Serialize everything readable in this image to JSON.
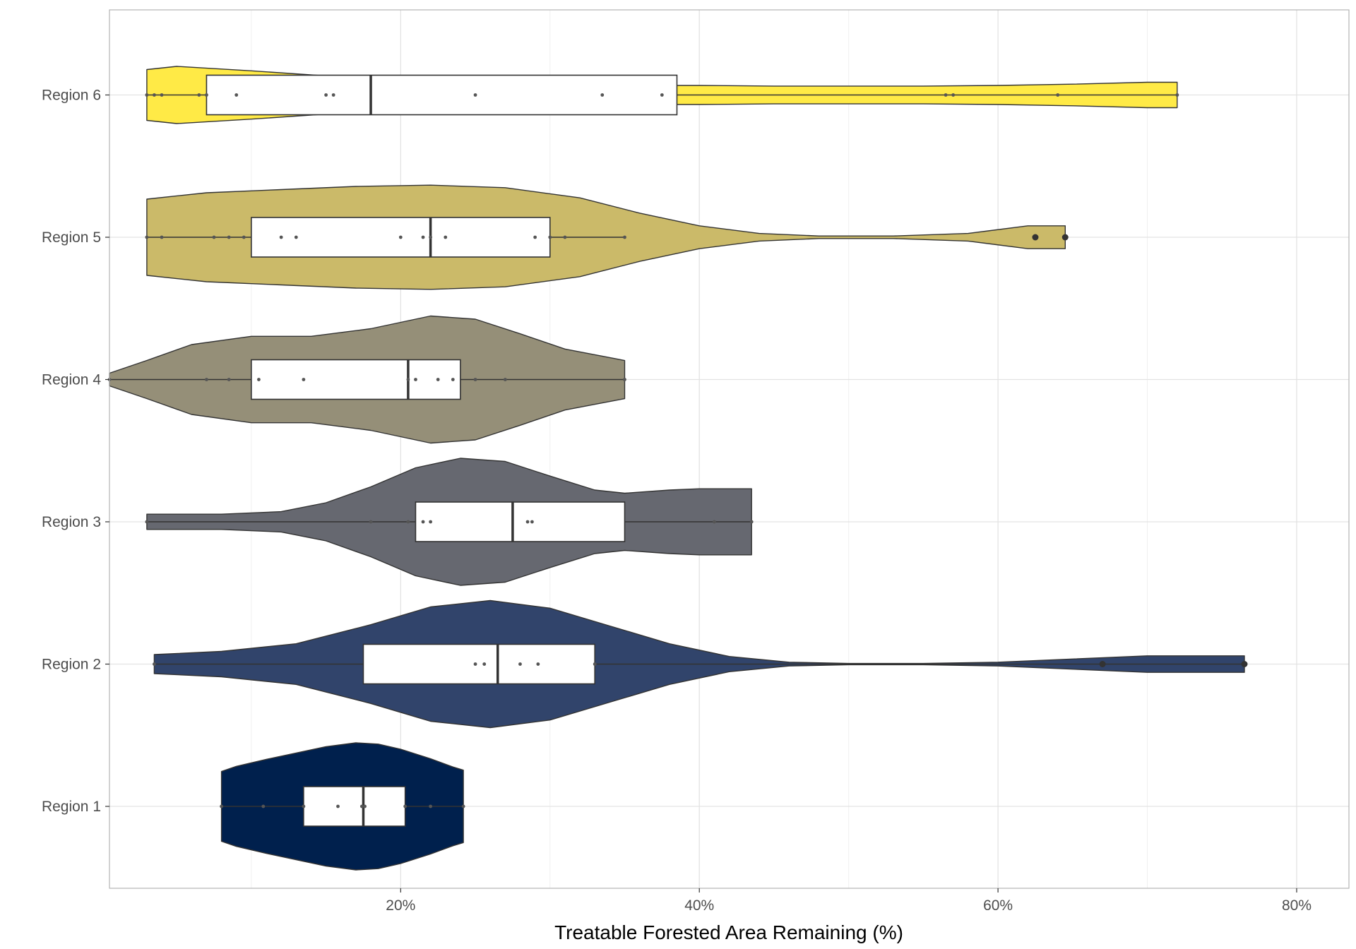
{
  "chart_data": {
    "type": "violin",
    "orientation": "horizontal",
    "title": "",
    "xlabel": "Treatable Forested Area Remaining (%)",
    "ylabel": "",
    "xlim": [
      0.5,
      83.5
    ],
    "x_ticks": [
      20,
      40,
      60,
      80
    ],
    "x_tick_labels": [
      "20%",
      "40%",
      "60%",
      "80%"
    ],
    "grid": true,
    "legend": "none",
    "categories": [
      "Region 1",
      "Region 2",
      "Region 3",
      "Region 4",
      "Region 5",
      "Region 6"
    ],
    "series": [
      {
        "name": "Region 1",
        "color": "#00204d",
        "min": 8.0,
        "q1": 13.5,
        "median": 17.5,
        "q3": 20.3,
        "max": 24.2,
        "points": [
          8.0,
          10.8,
          13.5,
          15.8,
          17.4,
          17.6,
          20.3,
          22.0,
          24.2
        ],
        "outliers": [],
        "density": [
          [
            8.0,
            0.55
          ],
          [
            9.0,
            0.63
          ],
          [
            11.0,
            0.74
          ],
          [
            13.0,
            0.84
          ],
          [
            15.0,
            0.94
          ],
          [
            17.0,
            1.0
          ],
          [
            18.5,
            0.98
          ],
          [
            20.0,
            0.9
          ],
          [
            22.0,
            0.75
          ],
          [
            23.5,
            0.62
          ],
          [
            24.2,
            0.57
          ]
        ]
      },
      {
        "name": "Region 2",
        "color": "#31446b",
        "min": 3.5,
        "q1": 17.5,
        "median": 26.5,
        "q3": 33.0,
        "max": 76.5,
        "points": [
          3.5,
          25.0,
          25.6,
          28.0,
          29.2,
          33.0,
          67.0,
          76.5
        ],
        "outliers": [
          67.0,
          76.5
        ],
        "density": [
          [
            3.5,
            0.15
          ],
          [
            8.0,
            0.2
          ],
          [
            13.0,
            0.32
          ],
          [
            18.0,
            0.62
          ],
          [
            22.0,
            0.9
          ],
          [
            26.0,
            1.0
          ],
          [
            30.0,
            0.88
          ],
          [
            34.0,
            0.6
          ],
          [
            38.0,
            0.32
          ],
          [
            42.0,
            0.12
          ],
          [
            46.0,
            0.03
          ],
          [
            50.0,
            0.01
          ],
          [
            55.0,
            0.01
          ],
          [
            60.0,
            0.03
          ],
          [
            65.0,
            0.08
          ],
          [
            70.0,
            0.13
          ],
          [
            76.5,
            0.13
          ]
        ]
      },
      {
        "name": "Region 3",
        "color": "#666870",
        "min": 3.0,
        "q1": 21.0,
        "median": 27.5,
        "q3": 35.0,
        "max": 43.5,
        "points": [
          3.0,
          18.0,
          20.5,
          21.5,
          22.0,
          28.5,
          28.8,
          41.0,
          43.5
        ],
        "outliers": [],
        "density": [
          [
            3.0,
            0.12
          ],
          [
            8.0,
            0.12
          ],
          [
            12.0,
            0.16
          ],
          [
            15.0,
            0.3
          ],
          [
            18.0,
            0.55
          ],
          [
            21.0,
            0.85
          ],
          [
            24.0,
            1.0
          ],
          [
            27.0,
            0.95
          ],
          [
            30.0,
            0.72
          ],
          [
            33.0,
            0.5
          ],
          [
            35.0,
            0.45
          ],
          [
            38.0,
            0.5
          ],
          [
            40.0,
            0.52
          ],
          [
            43.5,
            0.52
          ]
        ]
      },
      {
        "name": "Region 4",
        "color": "#958f78",
        "min": 0.5,
        "q1": 10.0,
        "median": 20.5,
        "q3": 24.0,
        "max": 35.0,
        "points": [
          0.5,
          7.0,
          8.5,
          10.5,
          13.5,
          20.5,
          21.0,
          22.5,
          23.5,
          25.0,
          27.0,
          35.0
        ],
        "outliers": [],
        "density": [
          [
            0.5,
            0.1
          ],
          [
            3.0,
            0.3
          ],
          [
            6.0,
            0.55
          ],
          [
            10.0,
            0.68
          ],
          [
            14.0,
            0.68
          ],
          [
            18.0,
            0.8
          ],
          [
            22.0,
            1.0
          ],
          [
            25.0,
            0.95
          ],
          [
            28.0,
            0.72
          ],
          [
            31.0,
            0.48
          ],
          [
            35.0,
            0.3
          ]
        ]
      },
      {
        "name": "Region 5",
        "color": "#cbba69",
        "min": 3.0,
        "q1": 10.0,
        "median": 22.0,
        "q3": 30.0,
        "max": 35.0,
        "points": [
          3.0,
          4.0,
          7.5,
          8.5,
          9.5,
          12.0,
          13.0,
          20.0,
          21.5,
          22.0,
          23.0,
          29.0,
          30.0,
          31.0,
          35.0
        ],
        "outliers": [
          62.5,
          64.5
        ],
        "density": [
          [
            3.0,
            0.6
          ],
          [
            7.0,
            0.7
          ],
          [
            12.0,
            0.75
          ],
          [
            17.0,
            0.8
          ],
          [
            22.0,
            0.82
          ],
          [
            27.0,
            0.78
          ],
          [
            32.0,
            0.62
          ],
          [
            36.0,
            0.38
          ],
          [
            40.0,
            0.18
          ],
          [
            44.0,
            0.06
          ],
          [
            48.0,
            0.02
          ],
          [
            53.0,
            0.02
          ],
          [
            58.0,
            0.06
          ],
          [
            62.0,
            0.18
          ],
          [
            64.5,
            0.18
          ]
        ]
      },
      {
        "name": "Region 6",
        "color": "#ffea46",
        "min": 3.0,
        "q1": 7.0,
        "median": 18.0,
        "q3": 38.5,
        "max": 72.0,
        "points": [
          3.0,
          3.5,
          4.0,
          6.5,
          7.0,
          9.0,
          15.0,
          15.5,
          25.0,
          33.5,
          37.5,
          56.5,
          57.0,
          64.0,
          72.0
        ],
        "outliers": [],
        "density": [
          [
            3.0,
            0.4
          ],
          [
            5.0,
            0.45
          ],
          [
            10.0,
            0.38
          ],
          [
            15.0,
            0.3
          ],
          [
            20.0,
            0.24
          ],
          [
            25.0,
            0.19
          ],
          [
            30.0,
            0.16
          ],
          [
            35.0,
            0.15
          ],
          [
            40.0,
            0.15
          ],
          [
            45.0,
            0.14
          ],
          [
            50.0,
            0.14
          ],
          [
            55.0,
            0.14
          ],
          [
            60.0,
            0.15
          ],
          [
            65.0,
            0.17
          ],
          [
            70.0,
            0.2
          ],
          [
            72.0,
            0.2
          ]
        ]
      }
    ]
  }
}
